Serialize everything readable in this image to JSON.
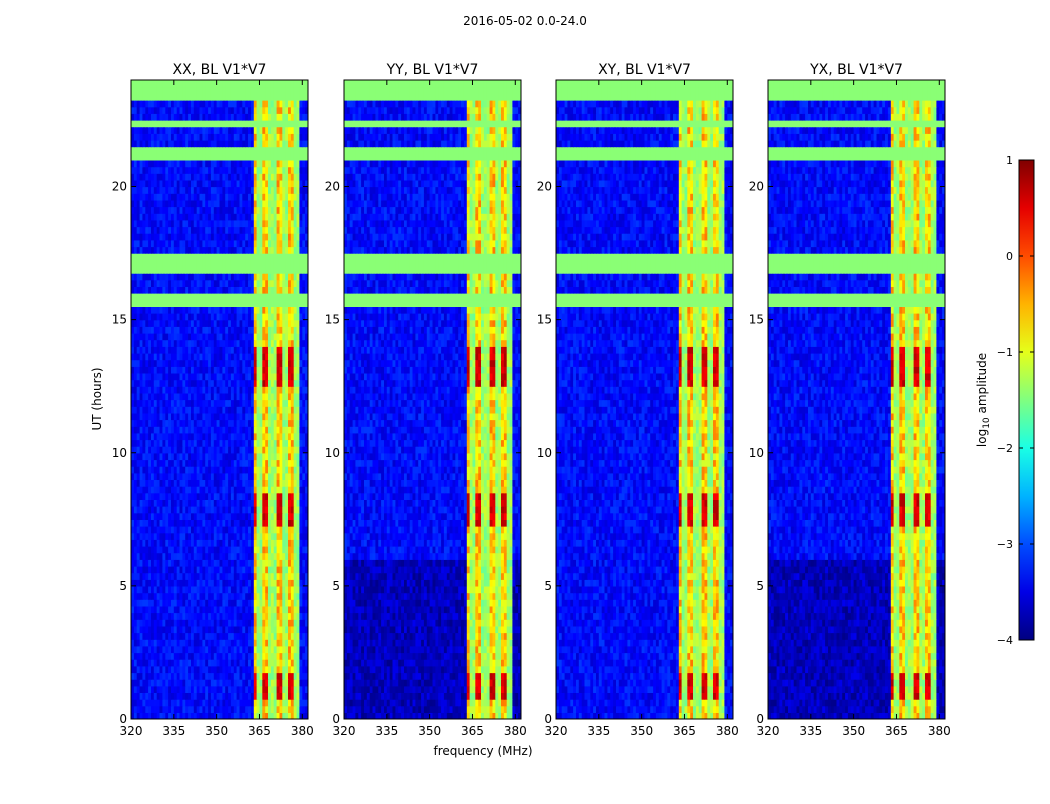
{
  "chart_data": {
    "type": "heatmap",
    "suptitle": "2016-05-02 0.0-24.0",
    "shared_axes": {
      "xlabel": "frequency (MHz)",
      "ylabel": "UT (hours)",
      "xlim": [
        320,
        382
      ],
      "ylim": [
        0,
        24
      ],
      "xticks": [
        320,
        335,
        350,
        365,
        380
      ],
      "yticks": [
        0,
        5,
        10,
        15,
        20
      ]
    },
    "panels": [
      {
        "title": "XX, BL V1*V7",
        "polarization": "XX"
      },
      {
        "title": "YY, BL V1*V7",
        "polarization": "YY"
      },
      {
        "title": "XY, BL V1*V7",
        "polarization": "XY"
      },
      {
        "title": "YX, BL V1*V7",
        "polarization": "YX"
      }
    ],
    "flagged_time_bands_hours": [
      [
        23.3,
        24.0
      ],
      [
        22.3,
        22.6
      ],
      [
        20.9,
        21.5
      ],
      [
        16.7,
        17.5
      ],
      [
        15.4,
        15.9
      ]
    ],
    "rfi_frequency_band_mhz": [
      363,
      378.5
    ],
    "rfi_channels_mhz": [
      364.8,
      369.5,
      374,
      378.2
    ],
    "colorbar": {
      "label": "log10 amplitude",
      "label_prefix": "log",
      "label_sub": "10",
      "label_suffix": " amplitude",
      "range": [
        -4,
        1
      ],
      "ticks": [
        1,
        0,
        -1,
        -2,
        -3,
        -4
      ],
      "colormap": "jet"
    }
  }
}
